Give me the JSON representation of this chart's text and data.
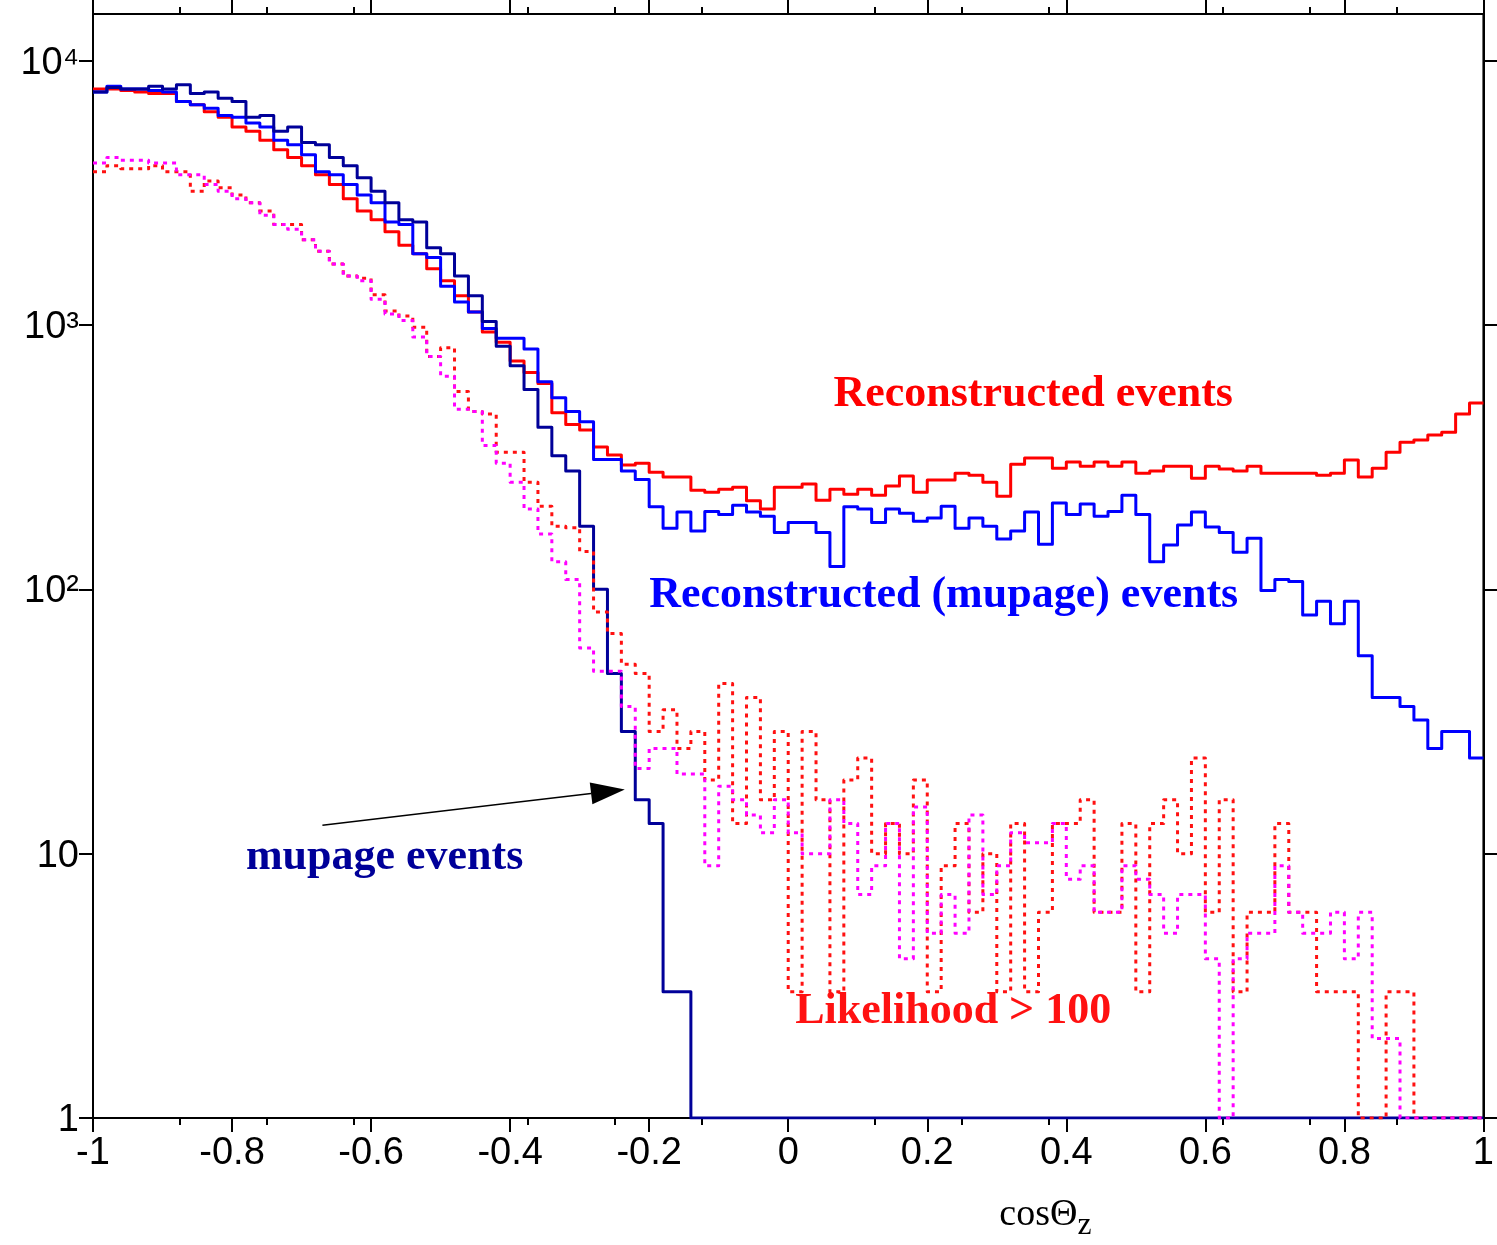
{
  "chart_data": {
    "type": "histogram",
    "xlabel": "cosΘ$_{z}$",
    "xlim": [
      -1,
      1
    ],
    "xticks": [
      -1,
      -0.8,
      -0.6,
      -0.4,
      -0.2,
      0,
      0.2,
      0.4,
      0.6,
      0.8,
      1
    ],
    "ylim": [
      1,
      15000
    ],
    "yticks": [
      1,
      10,
      {
        "value": 100,
        "label": "10²"
      },
      {
        "value": 1000,
        "label": "10³"
      },
      {
        "value": 10000,
        "label": "10⁴"
      }
    ],
    "log": "y",
    "bins": [
      -1,
      -0.98,
      -0.96,
      -0.94,
      -0.92,
      -0.9,
      -0.88,
      -0.86,
      -0.84,
      -0.82,
      -0.8,
      -0.78,
      -0.76,
      -0.74,
      -0.72,
      -0.7,
      -0.68,
      -0.66,
      -0.64,
      -0.62,
      -0.6,
      -0.58,
      -0.56,
      -0.54,
      -0.52,
      -0.5,
      -0.48,
      -0.46,
      -0.44,
      -0.42,
      -0.4,
      -0.38,
      -0.36,
      -0.34,
      -0.32,
      -0.3,
      -0.28,
      -0.26,
      -0.24,
      -0.22,
      -0.2,
      -0.18,
      -0.16,
      -0.14,
      -0.12,
      -0.1,
      -0.08,
      -0.06,
      -0.04,
      -0.02,
      0,
      0.02,
      0.04,
      0.06,
      0.08,
      0.1,
      0.12,
      0.14,
      0.16,
      0.18,
      0.2,
      0.22,
      0.24,
      0.26,
      0.28,
      0.3,
      0.32,
      0.34,
      0.36,
      0.38,
      0.4,
      0.42,
      0.44,
      0.46,
      0.48,
      0.5,
      0.52,
      0.54,
      0.56,
      0.58,
      0.6,
      0.62,
      0.64,
      0.66,
      0.68,
      0.7,
      0.72,
      0.74,
      0.76,
      0.78,
      0.8,
      0.82,
      0.84,
      0.86,
      0.88,
      0.9,
      0.92,
      0.94,
      0.96,
      0.98,
      1
    ],
    "series": [
      {
        "name": "Reconstructed events",
        "color": "#ff0000",
        "line_style": "solid",
        "values": [
          7800,
          7800,
          7700,
          7600,
          7500,
          7500,
          7000,
          6800,
          6400,
          6100,
          5600,
          5400,
          5000,
          4600,
          4300,
          4000,
          3700,
          3400,
          3000,
          2700,
          2500,
          2250,
          2000,
          1860,
          1630,
          1470,
          1290,
          1120,
          940,
          860,
          730,
          660,
          600,
          465,
          420,
          400,
          345,
          322,
          295,
          300,
          277,
          266,
          266,
          237,
          233,
          239,
          243,
          216,
          201,
          243,
          243,
          250,
          217,
          239,
          229,
          239,
          227,
          246,
          268,
          233,
          259,
          259,
          275,
          270,
          254,
          225,
          297,
          314,
          314,
          287,
          303,
          292,
          303,
          292,
          303,
          275,
          280,
          292,
          292,
          263,
          292,
          285,
          280,
          292,
          275,
          275,
          275,
          275,
          270,
          275,
          308,
          266,
          287,
          330,
          360,
          367,
          383,
          393,
          460,
          507
        ]
      },
      {
        "name": "Reconstructed (mupage) events",
        "color": "#0000ff",
        "line_style": "solid",
        "values": [
          7600,
          8000,
          7800,
          7800,
          7700,
          7600,
          7000,
          6800,
          6600,
          6200,
          6100,
          5800,
          5600,
          5000,
          4800,
          4400,
          3800,
          3700,
          3400,
          3100,
          2900,
          2450,
          2400,
          1860,
          1800,
          1400,
          1220,
          1120,
          970,
          890,
          890,
          810,
          610,
          530,
          470,
          430,
          310,
          310,
          280,
          260,
          205,
          170,
          196,
          166,
          197,
          192,
          208,
          196,
          189,
          164,
          179,
          179,
          164,
          122,
          205,
          201,
          179,
          201,
          194,
          181,
          186,
          206,
          170,
          186,
          173,
          155,
          166,
          196,
          148,
          212,
          192,
          210,
          189,
          197,
          227,
          192,
          127,
          147,
          175,
          196,
          172,
          164,
          138,
          156,
          99,
          109,
          107,
          80,
          90,
          74,
          90,
          56,
          39,
          39,
          36,
          32,
          25,
          29,
          29,
          23
        ]
      },
      {
        "name": "mupage events",
        "color": "#000099",
        "line_style": "solid",
        "values": [
          7600,
          7900,
          7800,
          7800,
          8000,
          7800,
          8100,
          7500,
          7600,
          7200,
          7000,
          6100,
          6200,
          5400,
          5600,
          4900,
          4800,
          4300,
          4000,
          3600,
          3200,
          2900,
          2500,
          2450,
          1960,
          1860,
          1530,
          1290,
          1030,
          830,
          700,
          570,
          410,
          320,
          280,
          173,
          100,
          48,
          29,
          16,
          13,
          3,
          3,
          1,
          1,
          1,
          1,
          1,
          1,
          1,
          1,
          1,
          1,
          1,
          1,
          1,
          1,
          1,
          1,
          1,
          1,
          1,
          1,
          1,
          1,
          1,
          1,
          1,
          1,
          1,
          1,
          1,
          1,
          1,
          1,
          1,
          1,
          1,
          1,
          1,
          1,
          1,
          1,
          1,
          1,
          1,
          1,
          1,
          1,
          1,
          1,
          1,
          1,
          1,
          1,
          1,
          1,
          1,
          1,
          1
        ]
      },
      {
        "name": "Likelihood > 100",
        "color": "#ff1111",
        "line_style": "dotted",
        "values": [
          3800,
          4000,
          3900,
          3900,
          4000,
          3800,
          3800,
          3200,
          3500,
          3300,
          3100,
          2900,
          2700,
          2400,
          2400,
          2100,
          1900,
          1700,
          1530,
          1500,
          1300,
          1130,
          1080,
          980,
          760,
          820,
          560,
          470,
          460,
          330,
          330,
          254,
          206,
          173,
          171,
          139,
          82,
          68,
          52,
          48,
          29,
          35,
          25,
          29,
          19,
          44,
          13,
          39,
          16,
          29,
          3,
          29,
          16,
          3,
          19,
          23,
          10,
          13,
          10,
          19,
          3,
          9,
          13,
          6,
          10,
          3,
          13,
          3,
          6,
          13,
          13,
          16,
          6,
          6,
          13,
          3,
          13,
          16,
          10,
          23,
          6,
          16,
          3,
          6,
          6,
          13,
          6,
          6,
          3,
          3,
          3,
          1,
          1,
          3,
          3,
          1,
          1,
          1,
          1,
          1
        ]
      },
      {
        "color": "#ff00ff",
        "line_style": "dotted",
        "values": [
          4100,
          4300,
          4200,
          4200,
          4100,
          4100,
          3700,
          3700,
          3400,
          3200,
          3000,
          2900,
          2600,
          2400,
          2300,
          2100,
          1900,
          1700,
          1530,
          1470,
          1250,
          1100,
          1040,
          900,
          760,
          640,
          480,
          470,
          350,
          300,
          254,
          201,
          162,
          127,
          109,
          60,
          49,
          49,
          36,
          21,
          25,
          25,
          20,
          20,
          9,
          18,
          16,
          14,
          12,
          16,
          12,
          10,
          10,
          16,
          13,
          7,
          9,
          13,
          4,
          15,
          5,
          7,
          5,
          14,
          7,
          9,
          12,
          11,
          11,
          13,
          8,
          9,
          6,
          6,
          9,
          8,
          7,
          5,
          7,
          7,
          4,
          1,
          4,
          5,
          5,
          9,
          6,
          5,
          5,
          6,
          4,
          6,
          2,
          2,
          1,
          1,
          1,
          1,
          1,
          1
        ]
      }
    ]
  }
}
